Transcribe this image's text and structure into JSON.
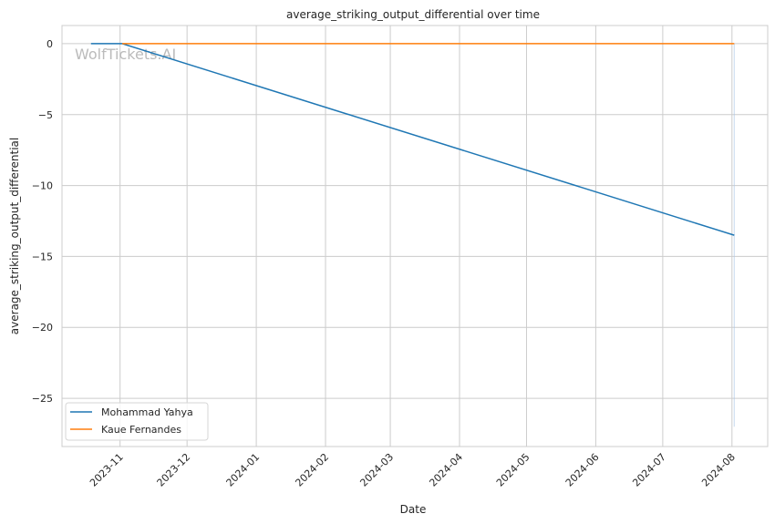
{
  "chart_data": {
    "type": "line",
    "title": "average_striking_output_differential over time",
    "xlabel": "Date",
    "ylabel": "average_striking_output_differential",
    "watermark": "WolfTickets.AI",
    "xlim": [
      "2023-10-06",
      "2024-08-17"
    ],
    "ylim": [
      -28.4,
      1.28
    ],
    "x_ticks": [
      "2023-11",
      "2023-12",
      "2024-01",
      "2024-02",
      "2024-03",
      "2024-04",
      "2024-05",
      "2024-06",
      "2024-07",
      "2024-08"
    ],
    "y_ticks": [
      0,
      -5,
      -10,
      -15,
      -20,
      -25
    ],
    "y_tick_labels": [
      "0",
      "−5",
      "−10",
      "−15",
      "−20",
      "−25"
    ],
    "grid": true,
    "legend_position": "lower-left",
    "series": [
      {
        "name": "Mohammad Yahya",
        "color": "#1f77b4",
        "x": [
          "2023-10-19",
          "2023-11-02",
          "2024-08-02"
        ],
        "y": [
          0,
          0,
          -13.5
        ]
      },
      {
        "name": "Kaue Fernandes",
        "color": "#ff7f0e",
        "x": [
          "2023-11-02",
          "2024-08-02"
        ],
        "y": [
          0,
          0
        ]
      }
    ],
    "band": {
      "x": "2024-08-02",
      "y_range": [
        0,
        -27
      ],
      "color": "#aec7e8"
    }
  }
}
